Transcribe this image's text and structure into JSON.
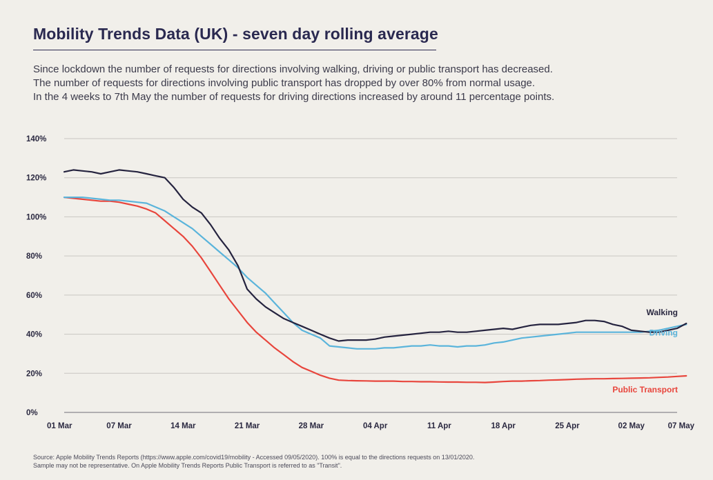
{
  "header": {
    "title": "Mobility Trends Data (UK) - seven day rolling average",
    "description_lines": [
      "Since lockdown the number of requests for directions involving walking, driving or public transport has decreased.",
      "The number of requests for directions involving public transport has dropped by over 80% from normal usage.",
      "In the 4 weeks to 7th May the number of requests for driving directions increased by around 11 percentage points."
    ]
  },
  "footer": {
    "lines": [
      "Source: Apple Mobility Trends Reports (https://www.apple.com/covid19/mobility - Accessed 09/05/2020). 100% is equal to the directions requests on 13/01/2020.",
      "Sample may not be representative. On Apple Mobility Trends Reports Public Transport is referred to as \"Transit\"."
    ]
  },
  "chart_data": {
    "type": "line",
    "x_tick_labels": [
      "01 Mar",
      "07 Mar",
      "14 Mar",
      "21 Mar",
      "28 Mar",
      "04 Apr",
      "11 Apr",
      "18 Apr",
      "25 Apr",
      "02 May",
      "07 May"
    ],
    "x_tick_days": [
      0,
      6,
      13,
      20,
      27,
      34,
      41,
      48,
      55,
      62,
      67
    ],
    "y_tick_labels": [
      "0%",
      "20%",
      "40%",
      "60%",
      "80%",
      "100%",
      "120%",
      "140%"
    ],
    "ylim": [
      0,
      140
    ],
    "y_unit": "%",
    "grid": "horizontal",
    "series": [
      {
        "name": "Walking",
        "color": "#25233f",
        "values": [
          123,
          124,
          123.5,
          123,
          122,
          123,
          124,
          123.5,
          123,
          122,
          121,
          120,
          115,
          109,
          105,
          102,
          96,
          89,
          83,
          75,
          63,
          58,
          54,
          51,
          48,
          46,
          44,
          42,
          40,
          38,
          36.5,
          37,
          37,
          37,
          37.5,
          38.5,
          39,
          39.5,
          40,
          40.5,
          41,
          41,
          41.5,
          41,
          41,
          41.5,
          42,
          42.5,
          43,
          42.5,
          43.5,
          44.5,
          45,
          45,
          45,
          45.5,
          46,
          47,
          47,
          46.5,
          45,
          44,
          42,
          41.5,
          41,
          41,
          42,
          43,
          45.5
        ]
      },
      {
        "name": "Driving",
        "color": "#5ab4db",
        "values": [
          110,
          110,
          110,
          109.5,
          109,
          108.5,
          108.5,
          108,
          107.5,
          107,
          105,
          103,
          100,
          97,
          94,
          90,
          86,
          82,
          78,
          74,
          69,
          65,
          61,
          56,
          51,
          46,
          42,
          40,
          38,
          34,
          33.5,
          33,
          32.5,
          32.5,
          32.5,
          33,
          33,
          33.5,
          34,
          34,
          34.5,
          34,
          34,
          33.5,
          34,
          34,
          34.5,
          35.5,
          36,
          37,
          38,
          38.5,
          39,
          39.5,
          40,
          40.5,
          41,
          41,
          41,
          41,
          41,
          41,
          41,
          41,
          41.5,
          42,
          43,
          44,
          45
        ]
      },
      {
        "name": "Public Transport",
        "color": "#e8453c",
        "values": [
          110,
          109.5,
          109,
          108.5,
          108,
          108,
          107.5,
          106.5,
          105.5,
          104,
          102,
          98,
          94,
          90,
          85,
          79,
          72,
          65,
          58,
          52,
          46,
          41,
          37,
          33,
          29.5,
          26,
          23,
          21,
          19,
          17.5,
          16.5,
          16.3,
          16.2,
          16.1,
          16,
          16,
          16,
          15.8,
          15.8,
          15.7,
          15.7,
          15.6,
          15.5,
          15.5,
          15.4,
          15.4,
          15.3,
          15.5,
          15.8,
          16,
          16,
          16.2,
          16.3,
          16.5,
          16.6,
          16.8,
          17,
          17.1,
          17.2,
          17.2,
          17.3,
          17.4,
          17.5,
          17.6,
          17.7,
          17.9,
          18.1,
          18.4,
          18.7
        ]
      }
    ]
  }
}
